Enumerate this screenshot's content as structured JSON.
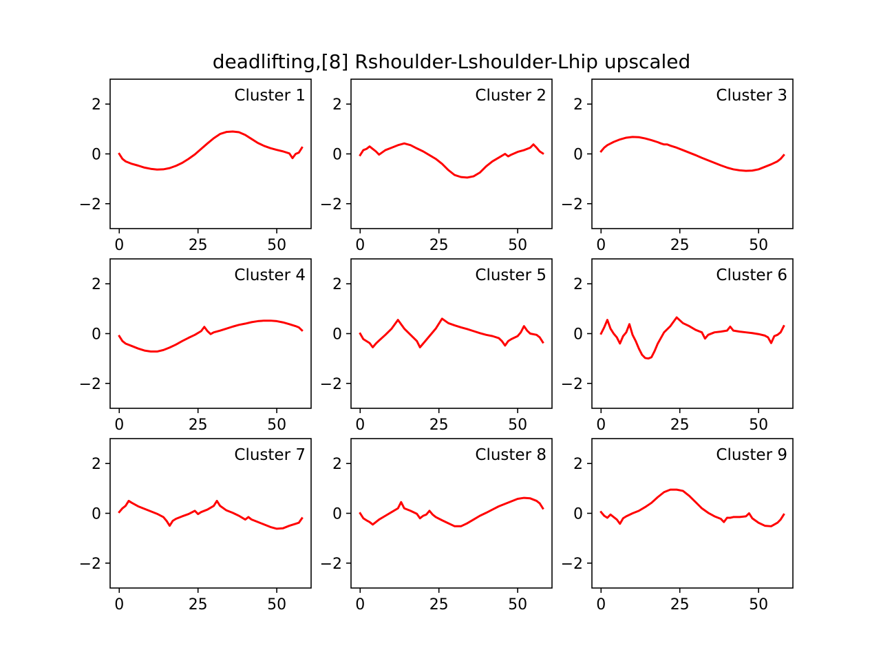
{
  "figure": {
    "title": "deadlifting,[8] Rshoulder-Lshoulder-Lhip upscaled",
    "line_color": "#ff0000",
    "grid": "3x3"
  },
  "chart_data": [
    {
      "type": "line",
      "label": "Cluster 1",
      "xlim": [
        -2.9,
        60.9
      ],
      "ylim": [
        -3,
        3
      ],
      "xticks": [
        0,
        25,
        50
      ],
      "yticks": [
        -2,
        0,
        2
      ],
      "x": [
        0,
        1,
        2,
        4,
        6,
        8,
        10,
        12,
        14,
        16,
        18,
        20,
        22,
        24,
        26,
        28,
        30,
        32,
        34,
        36,
        38,
        40,
        42,
        44,
        46,
        48,
        50,
        52,
        54,
        55,
        56,
        57,
        58
      ],
      "y": [
        0.0,
        -0.2,
        -0.3,
        -0.4,
        -0.47,
        -0.55,
        -0.6,
        -0.63,
        -0.62,
        -0.57,
        -0.48,
        -0.36,
        -0.2,
        -0.02,
        0.2,
        0.42,
        0.63,
        0.8,
        0.88,
        0.9,
        0.87,
        0.76,
        0.6,
        0.44,
        0.32,
        0.23,
        0.16,
        0.1,
        0.02,
        -0.17,
        0.0,
        0.05,
        0.25
      ]
    },
    {
      "type": "line",
      "label": "Cluster 2",
      "xlim": [
        -2.9,
        60.9
      ],
      "ylim": [
        -3,
        3
      ],
      "xticks": [
        0,
        25,
        50
      ],
      "yticks": [
        -2,
        0,
        2
      ],
      "x": [
        0,
        1,
        2,
        3,
        4,
        5,
        6,
        8,
        10,
        12,
        14,
        16,
        18,
        20,
        22,
        24,
        26,
        28,
        30,
        32,
        34,
        36,
        38,
        40,
        42,
        44,
        46,
        47,
        48,
        50,
        52,
        54,
        55,
        56,
        57,
        58
      ],
      "y": [
        -0.05,
        0.15,
        0.2,
        0.3,
        0.2,
        0.1,
        -0.03,
        0.15,
        0.25,
        0.35,
        0.42,
        0.35,
        0.22,
        0.1,
        -0.05,
        -0.2,
        -0.4,
        -0.65,
        -0.85,
        -0.93,
        -0.95,
        -0.9,
        -0.75,
        -0.5,
        -0.3,
        -0.15,
        0.0,
        -0.1,
        -0.03,
        0.08,
        0.15,
        0.25,
        0.38,
        0.25,
        0.1,
        0.02
      ]
    },
    {
      "type": "line",
      "label": "Cluster 3",
      "xlim": [
        -2.9,
        60.9
      ],
      "ylim": [
        -3,
        3
      ],
      "xticks": [
        0,
        25,
        50
      ],
      "yticks": [
        -2,
        0,
        2
      ],
      "x": [
        0,
        1,
        2,
        4,
        6,
        8,
        10,
        12,
        14,
        16,
        18,
        19,
        20,
        21,
        22,
        24,
        26,
        28,
        30,
        32,
        34,
        36,
        38,
        40,
        42,
        44,
        46,
        48,
        50,
        52,
        54,
        56,
        57,
        58
      ],
      "y": [
        0.1,
        0.25,
        0.35,
        0.48,
        0.58,
        0.65,
        0.68,
        0.67,
        0.62,
        0.55,
        0.47,
        0.42,
        0.38,
        0.38,
        0.33,
        0.25,
        0.15,
        0.05,
        -0.05,
        -0.16,
        -0.26,
        -0.36,
        -0.46,
        -0.55,
        -0.62,
        -0.66,
        -0.68,
        -0.67,
        -0.62,
        -0.52,
        -0.42,
        -0.3,
        -0.2,
        -0.05
      ]
    },
    {
      "type": "line",
      "label": "Cluster 4",
      "xlim": [
        -2.9,
        60.9
      ],
      "ylim": [
        -3,
        3
      ],
      "xticks": [
        0,
        25,
        50
      ],
      "yticks": [
        -2,
        0,
        2
      ],
      "x": [
        0,
        1,
        2,
        4,
        6,
        8,
        10,
        12,
        14,
        16,
        18,
        20,
        22,
        24,
        26,
        27,
        28,
        29,
        30,
        32,
        34,
        36,
        38,
        40,
        42,
        44,
        46,
        48,
        50,
        52,
        54,
        56,
        57,
        58
      ],
      "y": [
        -0.1,
        -0.3,
        -0.4,
        -0.5,
        -0.6,
        -0.68,
        -0.72,
        -0.72,
        -0.66,
        -0.56,
        -0.44,
        -0.3,
        -0.17,
        -0.05,
        0.1,
        0.27,
        0.1,
        -0.02,
        0.05,
        0.12,
        0.2,
        0.28,
        0.35,
        0.4,
        0.46,
        0.5,
        0.52,
        0.52,
        0.5,
        0.45,
        0.38,
        0.3,
        0.25,
        0.13
      ]
    },
    {
      "type": "line",
      "label": "Cluster 5",
      "xlim": [
        -2.9,
        60.9
      ],
      "ylim": [
        -3,
        3
      ],
      "xticks": [
        0,
        25,
        50
      ],
      "yticks": [
        -2,
        0,
        2
      ],
      "x": [
        0,
        1,
        2,
        3,
        4,
        5,
        6,
        8,
        10,
        12,
        14,
        16,
        18,
        19,
        20,
        22,
        24,
        26,
        28,
        30,
        32,
        34,
        36,
        38,
        40,
        42,
        44,
        45,
        46,
        47,
        48,
        50,
        51,
        52,
        53,
        54,
        56,
        57,
        58
      ],
      "y": [
        0.0,
        -0.22,
        -0.3,
        -0.38,
        -0.55,
        -0.4,
        -0.28,
        -0.05,
        0.2,
        0.55,
        0.2,
        -0.05,
        -0.3,
        -0.55,
        -0.4,
        -0.1,
        0.2,
        0.6,
        0.42,
        0.33,
        0.25,
        0.18,
        0.1,
        0.02,
        -0.05,
        -0.1,
        -0.18,
        -0.3,
        -0.48,
        -0.3,
        -0.22,
        -0.1,
        0.05,
        0.3,
        0.12,
        0.0,
        -0.05,
        -0.15,
        -0.35
      ]
    },
    {
      "type": "line",
      "label": "Cluster 6",
      "xlim": [
        -2.9,
        60.9
      ],
      "ylim": [
        -3,
        3
      ],
      "xticks": [
        0,
        25,
        50
      ],
      "yticks": [
        -2,
        0,
        2
      ],
      "x": [
        0,
        1,
        2,
        3,
        4,
        5,
        6,
        7,
        8,
        9,
        10,
        11,
        12,
        13,
        14,
        15,
        16,
        17,
        18,
        20,
        22,
        24,
        26,
        28,
        30,
        32,
        33,
        34,
        36,
        38,
        40,
        41,
        42,
        44,
        46,
        48,
        50,
        52,
        53,
        54,
        55,
        56,
        57,
        58
      ],
      "y": [
        0.0,
        0.25,
        0.55,
        0.2,
        0.0,
        -0.15,
        -0.4,
        -0.1,
        0.05,
        0.38,
        -0.05,
        -0.3,
        -0.6,
        -0.85,
        -0.98,
        -1.0,
        -0.95,
        -0.7,
        -0.4,
        0.05,
        0.3,
        0.65,
        0.42,
        0.3,
        0.15,
        0.05,
        -0.2,
        -0.05,
        0.05,
        0.08,
        0.12,
        0.28,
        0.12,
        0.08,
        0.05,
        0.02,
        -0.02,
        -0.08,
        -0.15,
        -0.38,
        -0.1,
        -0.05,
        0.05,
        0.3
      ]
    },
    {
      "type": "line",
      "label": "Cluster 7",
      "xlim": [
        -2.9,
        60.9
      ],
      "ylim": [
        -3,
        3
      ],
      "xticks": [
        0,
        25,
        50
      ],
      "yticks": [
        -2,
        0,
        2
      ],
      "x": [
        0,
        1,
        2,
        3,
        4,
        6,
        8,
        10,
        12,
        14,
        15,
        16,
        17,
        18,
        20,
        22,
        24,
        25,
        26,
        28,
        30,
        31,
        32,
        34,
        36,
        38,
        40,
        41,
        42,
        44,
        46,
        48,
        50,
        52,
        54,
        56,
        57,
        58
      ],
      "y": [
        0.05,
        0.2,
        0.3,
        0.5,
        0.42,
        0.28,
        0.18,
        0.08,
        -0.02,
        -0.15,
        -0.3,
        -0.5,
        -0.3,
        -0.22,
        -0.12,
        -0.03,
        0.1,
        -0.03,
        0.05,
        0.15,
        0.3,
        0.5,
        0.3,
        0.12,
        0.02,
        -0.1,
        -0.25,
        -0.15,
        -0.25,
        -0.35,
        -0.45,
        -0.55,
        -0.62,
        -0.6,
        -0.5,
        -0.42,
        -0.38,
        -0.2
      ]
    },
    {
      "type": "line",
      "label": "Cluster 8",
      "xlim": [
        -2.9,
        60.9
      ],
      "ylim": [
        -3,
        3
      ],
      "xticks": [
        0,
        25,
        50
      ],
      "yticks": [
        -2,
        0,
        2
      ],
      "x": [
        0,
        1,
        2,
        3,
        4,
        5,
        6,
        8,
        10,
        12,
        13,
        14,
        16,
        18,
        19,
        20,
        21,
        22,
        23,
        24,
        26,
        28,
        30,
        32,
        34,
        36,
        38,
        40,
        42,
        44,
        46,
        48,
        50,
        52,
        54,
        56,
        57,
        58
      ],
      "y": [
        0.0,
        -0.2,
        -0.28,
        -0.35,
        -0.45,
        -0.35,
        -0.25,
        -0.1,
        0.05,
        0.2,
        0.45,
        0.2,
        0.1,
        -0.02,
        -0.2,
        -0.1,
        -0.05,
        0.1,
        -0.05,
        -0.15,
        -0.28,
        -0.4,
        -0.52,
        -0.52,
        -0.4,
        -0.25,
        -0.1,
        0.02,
        0.15,
        0.28,
        0.38,
        0.48,
        0.58,
        0.62,
        0.6,
        0.5,
        0.4,
        0.2
      ]
    },
    {
      "type": "line",
      "label": "Cluster 9",
      "xlim": [
        -2.9,
        60.9
      ],
      "ylim": [
        -3,
        3
      ],
      "xticks": [
        0,
        25,
        50
      ],
      "yticks": [
        -2,
        0,
        2
      ],
      "x": [
        0,
        1,
        2,
        3,
        4,
        5,
        6,
        7,
        8,
        10,
        12,
        14,
        16,
        18,
        20,
        22,
        24,
        26,
        28,
        30,
        32,
        34,
        36,
        38,
        39,
        40,
        41,
        42,
        44,
        46,
        47,
        48,
        50,
        52,
        54,
        56,
        57,
        58
      ],
      "y": [
        0.05,
        -0.1,
        -0.18,
        -0.05,
        -0.15,
        -0.25,
        -0.42,
        -0.2,
        -0.12,
        0.0,
        0.1,
        0.25,
        0.42,
        0.65,
        0.85,
        0.95,
        0.95,
        0.9,
        0.7,
        0.45,
        0.2,
        0.02,
        -0.12,
        -0.22,
        -0.35,
        -0.18,
        -0.18,
        -0.15,
        -0.15,
        -0.12,
        0.0,
        -0.2,
        -0.38,
        -0.5,
        -0.52,
        -0.38,
        -0.25,
        -0.05
      ]
    }
  ]
}
